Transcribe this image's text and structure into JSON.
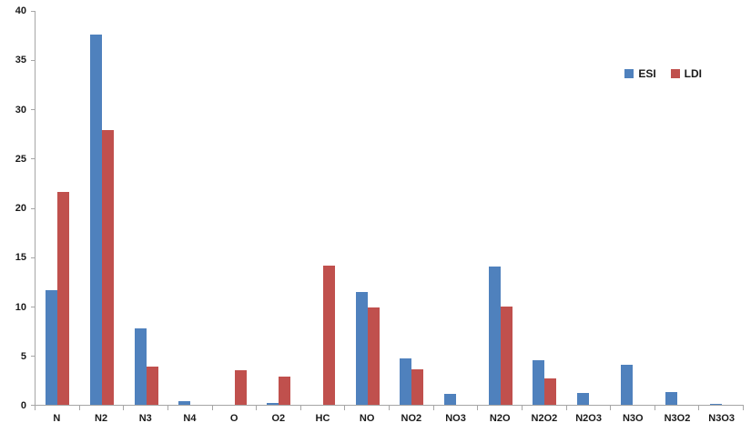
{
  "chart_data": {
    "type": "bar",
    "title": "",
    "xlabel": "",
    "ylabel": "",
    "categories": [
      "N",
      "N2",
      "N3",
      "N4",
      "O",
      "O2",
      "HC",
      "NO",
      "NO2",
      "NO3",
      "N2O",
      "N2O2",
      "N2O3",
      "N3O",
      "N3O2",
      "N3O3"
    ],
    "series": [
      {
        "name": "ESI",
        "color": "#4F81BD",
        "values": [
          11.6,
          37.6,
          7.8,
          0.4,
          0,
          0.2,
          0,
          11.5,
          4.7,
          1.1,
          14.0,
          4.5,
          1.2,
          4.1,
          1.3,
          0.1
        ]
      },
      {
        "name": "LDI",
        "color": "#C0504D",
        "values": [
          21.6,
          27.9,
          3.9,
          0,
          3.5,
          2.9,
          14.1,
          9.9,
          3.6,
          0,
          10.0,
          2.7,
          0,
          0,
          0,
          0
        ]
      }
    ],
    "ylim": [
      0,
      40
    ],
    "ytick_step": 5,
    "grid": false,
    "legend_position": "top-right",
    "axis_color": "#a6a6a6"
  },
  "legend": {
    "items": [
      {
        "label": "ESI",
        "color": "#4F81BD"
      },
      {
        "label": "LDI",
        "color": "#C0504D"
      }
    ]
  }
}
